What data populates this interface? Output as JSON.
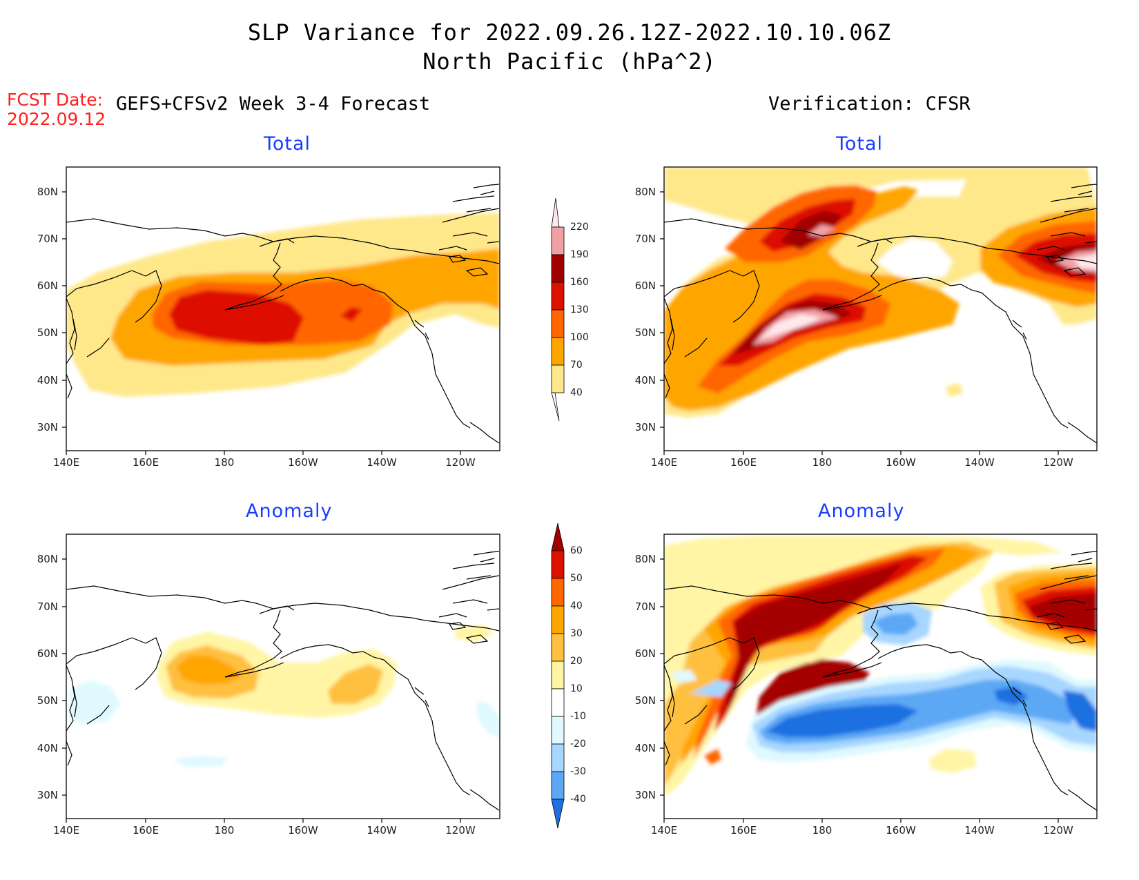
{
  "title": {
    "line1": "SLP Variance for 2022.09.26.12Z-2022.10.10.06Z",
    "line2": "North Pacific (hPa^2)"
  },
  "fcst": {
    "label": "FCST Date:",
    "date": "2022.09.12"
  },
  "headers": {
    "left": "GEFS+CFSv2 Week 3-4 Forecast",
    "right": "Verification: CFSR"
  },
  "panels": {
    "fcst_total": "Total",
    "verif_total": "Total",
    "fcst_anom": "Anomaly",
    "verif_anom": "Anomaly"
  },
  "axes": {
    "lat_labels": [
      "80N",
      "70N",
      "60N",
      "50N",
      "40N",
      "30N"
    ],
    "lon_labels": [
      "140E",
      "160E",
      "180",
      "160W",
      "140W",
      "120W"
    ]
  },
  "colorbars": {
    "total": {
      "levels": [
        "40",
        "70",
        "100",
        "130",
        "160",
        "190",
        "220"
      ],
      "colors": [
        "#fee88a",
        "#ffa500",
        "#ff6600",
        "#dd1100",
        "#a10000",
        "#f2a0a5",
        "#ffe8ea"
      ]
    },
    "anomaly": {
      "levels": [
        "60",
        "50",
        "40",
        "30",
        "20",
        "10",
        "-10",
        "-20",
        "-30",
        "-40"
      ],
      "colors": [
        "#a50000",
        "#dd1100",
        "#ff6600",
        "#ffa500",
        "#ffc040",
        "#fff5a5",
        "#ffffff",
        "#dff9ff",
        "#a7d6ff",
        "#5ba8f5",
        "#1f6fe0"
      ]
    }
  }
}
